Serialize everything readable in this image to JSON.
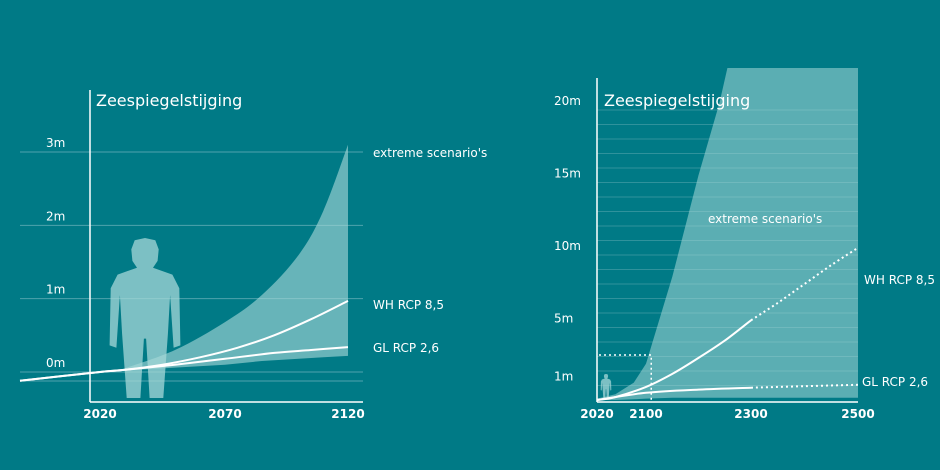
{
  "colors": {
    "background": "#007a86",
    "band": "#a6d8d8",
    "line": "#ffffff",
    "grid": "#4fa3ad"
  },
  "chart_data": [
    {
      "type": "area",
      "title": "Zeespiegelstijging",
      "x_ticks": [
        "2020",
        "2070",
        "2120"
      ],
      "y_ticks": [
        "0m",
        "1m",
        "2m",
        "3m"
      ],
      "xlim": [
        2020,
        2120
      ],
      "ylim": [
        0,
        3
      ],
      "grid": true,
      "icon": "person-silhouette",
      "band": {
        "name": "extreme scenario's",
        "x": [
          2030,
          2050,
          2070,
          2085,
          2100,
          2110,
          2120
        ],
        "upper": [
          0.05,
          0.3,
          0.68,
          1.05,
          1.6,
          2.2,
          3.1
        ],
        "lower": [
          0.02,
          0.06,
          0.1,
          0.15,
          0.18,
          0.2,
          0.22
        ]
      },
      "series": [
        {
          "name": "WH RCP 8,5",
          "x": [
            1995,
            2020,
            2030,
            2045,
            2060,
            2075,
            2090,
            2105,
            2120
          ],
          "y": [
            -0.12,
            0.0,
            0.03,
            0.1,
            0.2,
            0.33,
            0.5,
            0.72,
            0.97
          ]
        },
        {
          "name": "GL RCP 2,6",
          "x": [
            1995,
            2020,
            2030,
            2050,
            2070,
            2090,
            2105,
            2120
          ],
          "y": [
            -0.12,
            0.0,
            0.03,
            0.1,
            0.18,
            0.26,
            0.3,
            0.34
          ]
        }
      ]
    },
    {
      "type": "area",
      "title": "Zeespiegelstijging",
      "x_ticks": [
        "2020",
        "2100",
        "2300",
        "2500"
      ],
      "y_ticks": [
        "1m",
        "5m",
        "10m",
        "15m",
        "20m"
      ],
      "xlim": [
        2020,
        2500
      ],
      "ylim": [
        0,
        21
      ],
      "grid": true,
      "icon": "person-silhouette",
      "band": {
        "name": "extreme scenario's",
        "x": [
          2020,
          2050,
          2080,
          2100,
          2150,
          2200,
          2240,
          2255,
          2500
        ],
        "upper": [
          0.1,
          0.4,
          1.2,
          2.5,
          8.5,
          15.5,
          20.5,
          23.0,
          23.0
        ],
        "lower": [
          0.0,
          0.0,
          0.05,
          0.1,
          0.15,
          0.15,
          0.15,
          0.15,
          0.15
        ]
      },
      "series": [
        {
          "name": "WH RCP 8,5",
          "x": [
            2020,
            2050,
            2100,
            2150,
            2200,
            2250,
            2300,
            2350,
            2400,
            2450,
            2500
          ],
          "y": [
            0.0,
            0.2,
            0.9,
            1.8,
            2.9,
            4.1,
            5.5,
            6.7,
            8.0,
            9.3,
            10.5
          ],
          "dashed_from": 2300
        },
        {
          "name": "GL RCP 2,6",
          "x": [
            2020,
            2100,
            2200,
            2300,
            2400,
            2500
          ],
          "y": [
            0.0,
            0.5,
            0.72,
            0.85,
            0.95,
            1.05
          ],
          "dashed_from": 2300
        }
      ],
      "highlight_box": {
        "x": [
          2020,
          2110
        ],
        "y": [
          0,
          3.1
        ]
      }
    }
  ]
}
